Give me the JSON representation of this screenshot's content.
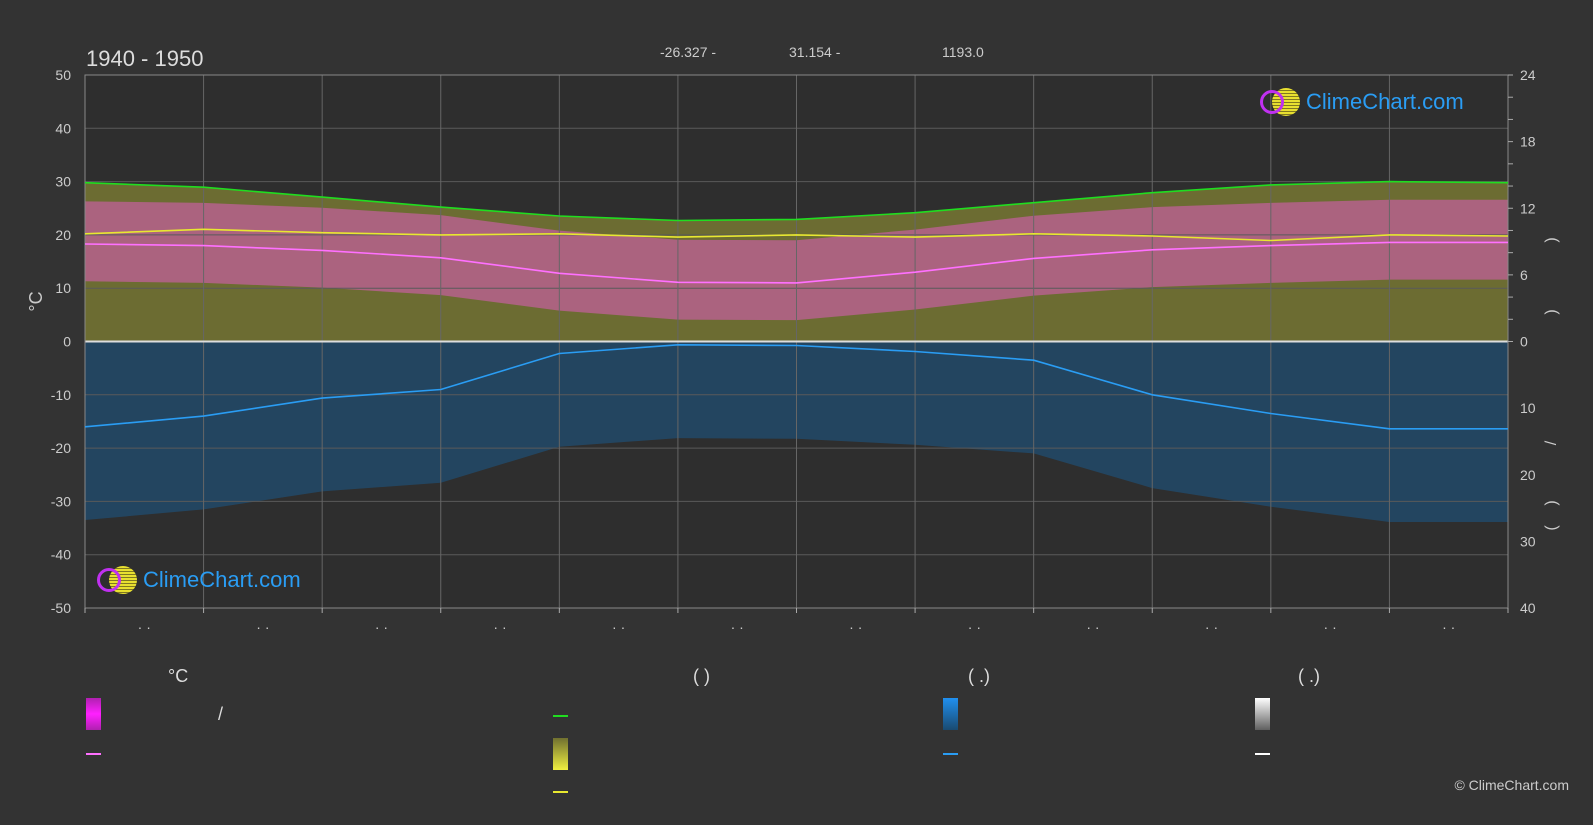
{
  "header": {
    "period": "1940 - 1950",
    "lat_text": "-26.327 -",
    "lon_text": "31.154 -",
    "elev_text": "1193.0"
  },
  "logo": {
    "text": "ClimeChart.com"
  },
  "copyright": "© ClimeChart.com",
  "legend": {
    "col1_head": "°C",
    "col1_range_sep": "/",
    "col2_head": "(          )",
    "col3_head": "(   .)",
    "col4_head": "(   .)",
    "colors": {
      "temp_range": "#e020e0",
      "temp_mean": "#ff70ff",
      "daylight": "#20dd20",
      "sunshine": "#e8e830",
      "sunshine_mean": "#e8e830",
      "rain": "#1a8ae0",
      "rain_mean": "#2a9df4",
      "snow": "#ffffff",
      "snow_mean": "#ffffff"
    }
  },
  "chart_data": {
    "type": "line",
    "left_axis": {
      "label": "°C",
      "ticks": [
        50,
        40,
        30,
        20,
        10,
        0,
        -10,
        -20,
        -30,
        -40,
        -50
      ],
      "range": [
        -50,
        50
      ]
    },
    "right_axis_top": {
      "ticks": [
        24,
        18,
        12,
        6,
        0
      ],
      "range": [
        0,
        24
      ]
    },
    "right_axis_bottom": {
      "ticks": [
        10,
        20,
        30,
        40
      ],
      "range": [
        0,
        40
      ]
    },
    "right_axis_labels": [
      ")",
      ")",
      "/",
      ")",
      "("
    ],
    "x_tick_labels": [
      "· ·",
      "· ·",
      "· ·",
      "· ·",
      "· ·",
      "· ·",
      "· ·",
      "· ·",
      "· ·",
      "· ·",
      "· ·",
      "· ·"
    ],
    "series": [
      {
        "key": "daylight",
        "color": "#20dd20",
        "axis": "hours",
        "values": [
          14.3,
          13.9,
          13.0,
          12.1,
          11.3,
          10.9,
          11.0,
          11.6,
          12.5,
          13.4,
          14.1,
          14.4,
          14.3
        ]
      },
      {
        "key": "sunshine",
        "color": "#e8e830",
        "axis": "hours",
        "values": [
          9.7,
          10.1,
          9.8,
          9.6,
          9.7,
          9.4,
          9.6,
          9.4,
          9.7,
          9.5,
          9.1,
          9.6,
          9.5
        ]
      },
      {
        "key": "temp_mean",
        "color": "#ff70ff",
        "axis": "temp",
        "values": [
          18.3,
          18.0,
          17.1,
          15.7,
          12.8,
          11.1,
          11.0,
          13.0,
          15.6,
          17.2,
          18.0,
          18.6,
          18.6
        ]
      },
      {
        "key": "rain_mean",
        "color": "#2a9df4",
        "axis": "rain",
        "values": [
          12.8,
          11.2,
          8.5,
          7.2,
          1.8,
          0.5,
          0.6,
          1.5,
          2.8,
          8.0,
          10.8,
          13.1,
          13.1
        ]
      }
    ]
  }
}
